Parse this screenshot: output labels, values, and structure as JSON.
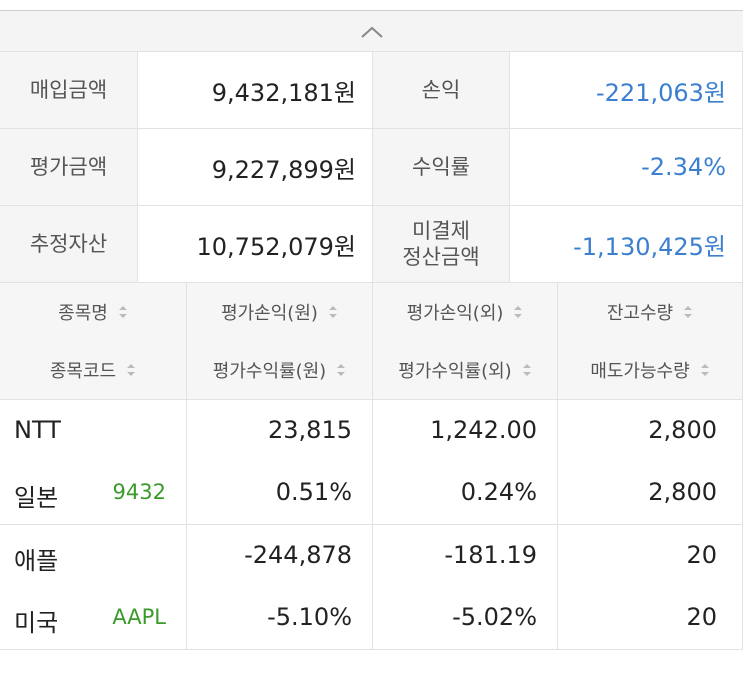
{
  "summary": [
    {
      "label": "매입금액",
      "value": "9,432,181원",
      "label2": "손익",
      "value2": "-221,063원"
    },
    {
      "label": "평가금액",
      "value": "9,227,899원",
      "label2": "수익률",
      "value2": "-2.34%"
    },
    {
      "label": "추정자산",
      "value": "10,752,079원",
      "label2": "미결제\n정산금액",
      "value2": "-1,130,425원"
    }
  ],
  "header": {
    "row1": [
      "종목명",
      "평가손익(원)",
      "평가손익(외)",
      "잔고수량"
    ],
    "row2": [
      "종목코드",
      "평가수익률(원)",
      "평가수익률(외)",
      "매도가능수량"
    ]
  },
  "holdings": [
    {
      "name": "NTT",
      "country": "일본",
      "code": "9432",
      "pl_krw": "23,815",
      "pl_foreign": "1,242.00",
      "quantity": "2,800",
      "rate_krw": "0.51%",
      "rate_foreign": "0.24%",
      "sellable": "2,800"
    },
    {
      "name": "애플",
      "country": "미국",
      "code": "AAPL",
      "pl_krw": "-244,878",
      "pl_foreign": "-181.19",
      "quantity": "20",
      "rate_krw": "-5.10%",
      "rate_foreign": "-5.02%",
      "sellable": "20"
    }
  ]
}
